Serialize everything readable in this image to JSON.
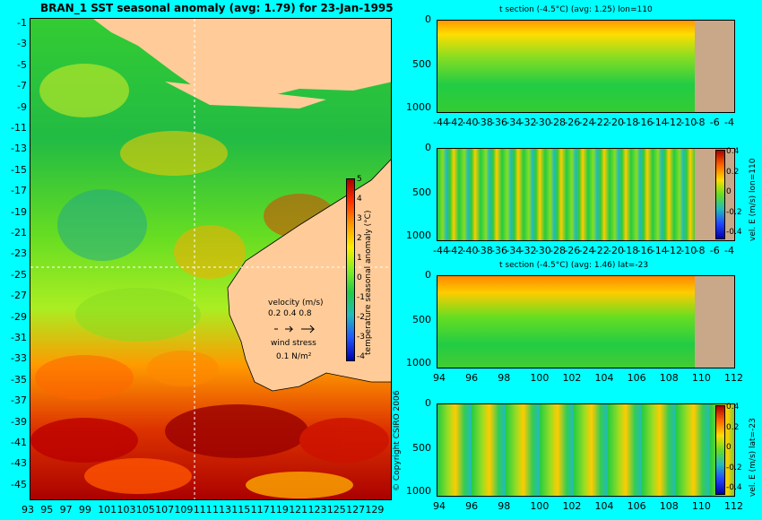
{
  "map": {
    "title": "BRAN_1 SST seasonal anomaly (avg: 1.79) for 23-Jan-1995",
    "lat_ticks": [
      "-1",
      "-3",
      "-5",
      "-7",
      "-9",
      "-11",
      "-13",
      "-15",
      "-17",
      "-19",
      "-21",
      "-23",
      "-25",
      "-27",
      "-29",
      "-31",
      "-33",
      "-35",
      "-37",
      "-39",
      "-41",
      "-43",
      "-45"
    ],
    "lon_ticks": [
      "93",
      "95",
      "97",
      "99",
      "101",
      "103",
      "105",
      "107",
      "109",
      "111",
      "113",
      "115",
      "117",
      "119",
      "121",
      "123",
      "125",
      "127",
      "129"
    ],
    "colorbar_label": "temperature seasonal anomaly (°C)",
    "colorbar_ticks": [
      "5",
      "4",
      "3",
      "2",
      "1",
      "0",
      "-1",
      "-2",
      "-3",
      "-4"
    ],
    "legend": {
      "velocity_title": "velocity (m/s)",
      "velocity_values": "0.2 0.4 0.8",
      "wind_title": "wind stress",
      "wind_value": "0.1 N/m²"
    },
    "copyright": "© Copyright CSIRO 2006"
  },
  "chart_data": [
    {
      "type": "heatmap",
      "title": "t section (-4.5°C) (avg: 1.25) lon=110",
      "x_ticks": [
        "-44",
        "-42",
        "-40",
        "-38",
        "-36",
        "-34",
        "-32",
        "-30",
        "-28",
        "-26",
        "-24",
        "-22",
        "-20",
        "-18",
        "-16",
        "-14",
        "-12",
        "-10",
        "-8",
        "-6",
        "-4"
      ],
      "y_ticks": [
        "0",
        "500",
        "1000"
      ],
      "ylim": [
        1050,
        0
      ]
    },
    {
      "type": "heatmap",
      "title": "",
      "x_ticks": [
        "-44",
        "-42",
        "-40",
        "-38",
        "-36",
        "-34",
        "-32",
        "-30",
        "-28",
        "-26",
        "-24",
        "-22",
        "-20",
        "-18",
        "-16",
        "-14",
        "-12",
        "-10",
        "-8",
        "-6",
        "-4"
      ],
      "y_ticks": [
        "0",
        "500",
        "1000"
      ],
      "colorbar_label": "vel. E (m/s) lon=110",
      "colorbar_ticks": [
        "0.4",
        "0.2",
        "0",
        "-0.2",
        "-0.4"
      ],
      "ylim": [
        1050,
        0
      ]
    },
    {
      "type": "heatmap",
      "title": "t section (-4.5°C) (avg: 1.46) lat=-23",
      "x_ticks": [
        "94",
        "96",
        "98",
        "100",
        "102",
        "104",
        "106",
        "108",
        "110",
        "112"
      ],
      "y_ticks": [
        "0",
        "500",
        "1000"
      ],
      "ylim": [
        1050,
        0
      ]
    },
    {
      "type": "heatmap",
      "title": "",
      "x_ticks": [
        "94",
        "96",
        "98",
        "100",
        "102",
        "104",
        "106",
        "108",
        "110",
        "112"
      ],
      "y_ticks": [
        "0",
        "500",
        "1000"
      ],
      "colorbar_label": "vel. E (m/s) lat=-23",
      "colorbar_ticks": [
        "0.4",
        "0.2",
        "0",
        "-0.2",
        "-0.4"
      ],
      "ylim": [
        1050,
        0
      ]
    }
  ]
}
